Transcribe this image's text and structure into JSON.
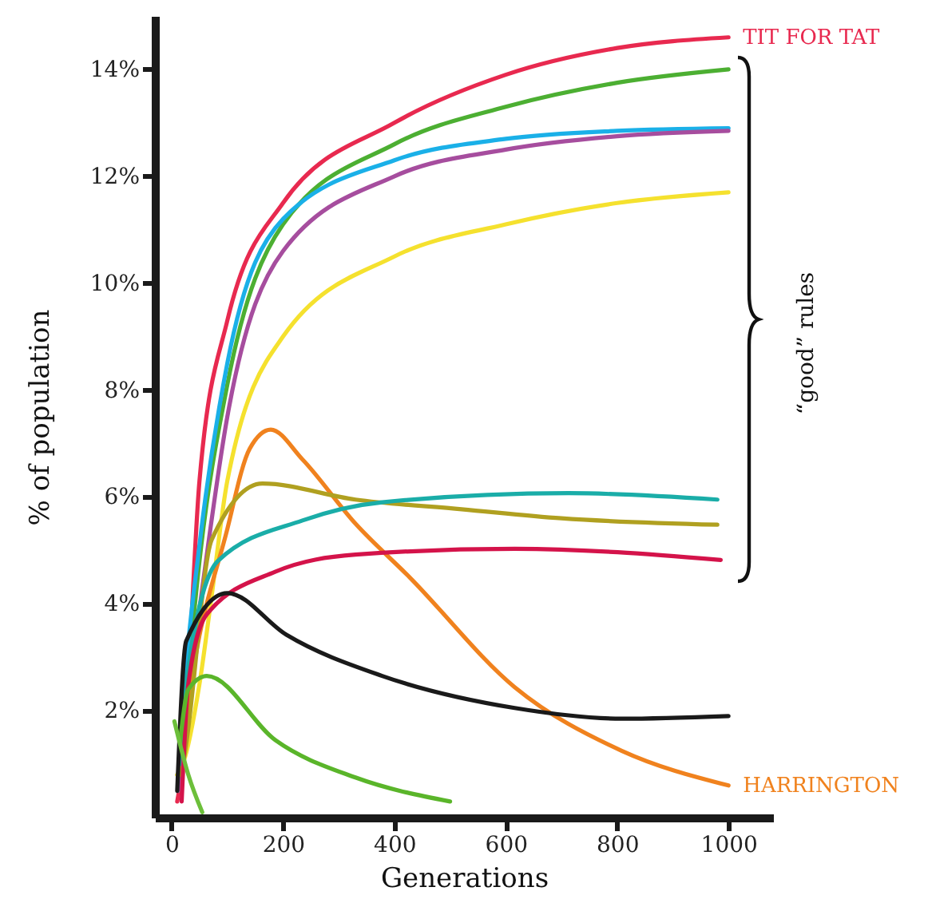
{
  "chart_data": {
    "type": "line",
    "xlabel": "Generations",
    "ylabel": "% of population",
    "xlim": [
      -30,
      1080
    ],
    "ylim": [
      0,
      15
    ],
    "xticks": [
      0,
      200,
      400,
      600,
      800,
      1000
    ],
    "yticks": [
      {
        "value": 2,
        "label": "2%"
      },
      {
        "value": 4,
        "label": "4%"
      },
      {
        "value": 6,
        "label": "6%"
      },
      {
        "value": 8,
        "label": "8%"
      },
      {
        "value": 10,
        "label": "10%"
      },
      {
        "value": 12,
        "label": "12%"
      },
      {
        "value": 14,
        "label": "14%"
      }
    ],
    "grid": false,
    "marker": "none",
    "line_style": "solid",
    "annotations": [
      "“good” rules"
    ],
    "series": [
      {
        "name": "TIT FOR TAT",
        "color": "#e8294f",
        "x": [
          10,
          20,
          50,
          100,
          200,
          400,
          600,
          800,
          1000
        ],
        "values": [
          0.3,
          1.0,
          6.3,
          9.3,
          11.5,
          13.0,
          13.9,
          14.4,
          14.6
        ]
      },
      {
        "color": "#4caf32",
        "x": [
          12,
          20,
          50,
          100,
          200,
          400,
          600,
          800,
          1000
        ],
        "values": [
          0.5,
          1.5,
          4.8,
          8.1,
          11.1,
          12.6,
          13.3,
          13.75,
          14.0
        ]
      },
      {
        "color": "#1ab0e8",
        "x": [
          12,
          20,
          50,
          100,
          200,
          400,
          600,
          800,
          1000
        ],
        "values": [
          0.6,
          2.0,
          5.1,
          8.5,
          11.2,
          12.3,
          12.7,
          12.85,
          12.9
        ]
      },
      {
        "color": "#a64d9e",
        "x": [
          12,
          20,
          50,
          100,
          200,
          400,
          600,
          800,
          1000
        ],
        "values": [
          0.5,
          1.5,
          3.9,
          7.5,
          10.6,
          12.0,
          12.5,
          12.75,
          12.85
        ]
      },
      {
        "color": "#f5e12e",
        "x": [
          10,
          20,
          50,
          70,
          100,
          200,
          400,
          600,
          800,
          1000
        ],
        "values": [
          0.8,
          1.0,
          2.5,
          4.0,
          6.3,
          9.0,
          10.5,
          11.1,
          11.5,
          11.7
        ]
      },
      {
        "name": "HARRINGTON",
        "color": "#f0821e",
        "x": [
          15,
          26,
          100,
          140,
          178,
          235,
          330,
          427,
          616,
          808,
          1000
        ],
        "values": [
          0.8,
          1.8,
          5.4,
          6.9,
          7.26,
          6.7,
          5.5,
          4.5,
          2.44,
          1.25,
          0.6
        ]
      },
      {
        "color": "#b0a020",
        "x": [
          15,
          20,
          72,
          163,
          330,
          521,
          700,
          980
        ],
        "values": [
          0.8,
          1.0,
          5.2,
          6.25,
          5.95,
          5.77,
          5.6,
          5.48
        ]
      },
      {
        "color": "#1aada8",
        "x": [
          15,
          20,
          83,
          235,
          378,
          713,
          980
        ],
        "values": [
          1.0,
          2.0,
          4.8,
          5.56,
          5.9,
          6.07,
          5.95
        ]
      },
      {
        "color": "#d4134a",
        "x": [
          18,
          30,
          63,
          186,
          330,
          616,
          986
        ],
        "values": [
          0.3,
          2.5,
          3.8,
          4.6,
          4.92,
          5.03,
          4.82
        ]
      },
      {
        "color": "#1a1a1a",
        "x": [
          10,
          26,
          100,
          206,
          378,
          616,
          808,
          1000
        ],
        "values": [
          0.5,
          3.3,
          4.2,
          3.42,
          2.65,
          2.05,
          1.85,
          1.9
        ]
      },
      {
        "color": "#5ab52a",
        "x": [
          15,
          30,
          63,
          186,
          330,
          500
        ],
        "values": [
          1.4,
          2.4,
          2.65,
          1.45,
          0.75,
          0.3
        ]
      },
      {
        "color": "#6cbf3a",
        "x": [
          5,
          30,
          55
        ],
        "values": [
          1.8,
          0.8,
          0.1
        ]
      }
    ]
  }
}
